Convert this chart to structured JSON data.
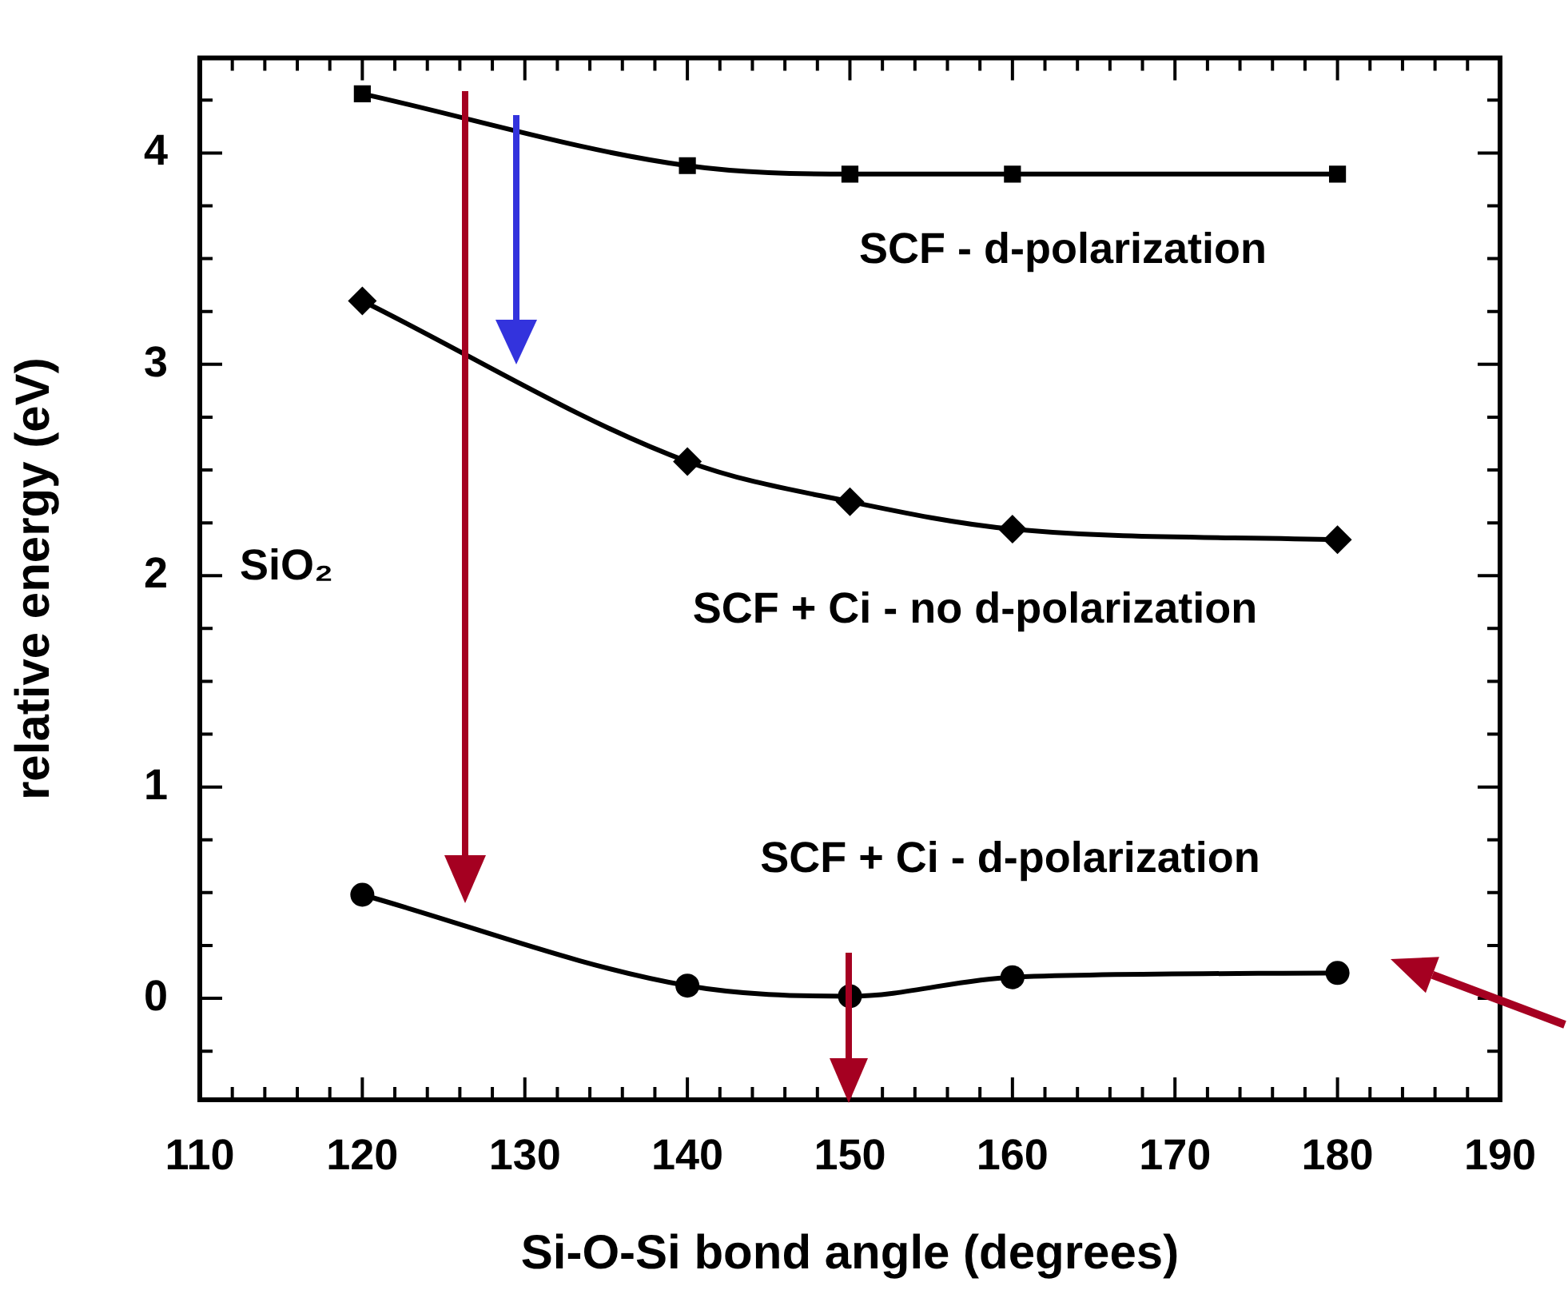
{
  "chart_data": {
    "type": "line",
    "xlabel": "Si-O-Si bond angle (degrees)",
    "ylabel": "relative energy (eV)",
    "x": [
      120,
      140,
      150,
      160,
      180
    ],
    "series": [
      {
        "name": "SCF - d-polarization",
        "color": "#000000",
        "marker": "square",
        "values": [
          4.28,
          3.94,
          3.9,
          3.9,
          3.9
        ]
      },
      {
        "name": "SCF + Ci - no d-polarization",
        "color": "#000000",
        "marker": "diamond",
        "values": [
          3.3,
          2.54,
          2.35,
          2.22,
          2.17
        ]
      },
      {
        "name": "SCF + Ci - d-polarization",
        "color": "#000000",
        "marker": "circle",
        "values": [
          0.49,
          0.06,
          0.01,
          0.1,
          0.12
        ]
      }
    ],
    "xlim": [
      110,
      190
    ],
    "xticks": [
      110,
      {
        "value": 112,
        "label": null
      },
      {
        "value": 114,
        "label": null
      },
      {
        "value": 116,
        "label": null
      },
      {
        "value": 118,
        "label": null
      },
      120,
      {
        "value": 122,
        "label": null
      },
      {
        "value": 124,
        "label": null
      },
      {
        "value": 126,
        "label": null
      },
      {
        "value": 128,
        "label": null
      },
      130,
      {
        "value": 132,
        "label": null
      },
      {
        "value": 134,
        "label": null
      },
      {
        "value": 136,
        "label": null
      },
      {
        "value": 138,
        "label": null
      },
      140,
      {
        "value": 142,
        "label": null
      },
      {
        "value": 144,
        "label": null
      },
      {
        "value": 146,
        "label": null
      },
      {
        "value": 148,
        "label": null
      },
      150,
      {
        "value": 152,
        "label": null
      },
      {
        "value": 154,
        "label": null
      },
      {
        "value": 156,
        "label": null
      },
      {
        "value": 158,
        "label": null
      },
      160,
      {
        "value": 162,
        "label": null
      },
      {
        "value": 164,
        "label": null
      },
      {
        "value": 166,
        "label": null
      },
      {
        "value": 168,
        "label": null
      },
      170,
      {
        "value": 172,
        "label": null
      },
      {
        "value": 174,
        "label": null
      },
      {
        "value": 176,
        "label": null
      },
      {
        "value": 178,
        "label": null
      },
      180,
      {
        "value": 182,
        "label": null
      },
      {
        "value": 184,
        "label": null
      },
      {
        "value": 186,
        "label": null
      },
      {
        "value": 188,
        "label": null
      },
      190
    ],
    "ylim": [
      -0.48,
      4.45
    ],
    "yticks": [
      {
        "value": -0.25,
        "label": null
      },
      0,
      {
        "value": 0.25,
        "label": null
      },
      {
        "value": 0.5,
        "label": null
      },
      {
        "value": 0.75,
        "label": null
      },
      1,
      {
        "value": 1.25,
        "label": null
      },
      {
        "value": 1.5,
        "label": null
      },
      {
        "value": 1.75,
        "label": null
      },
      2,
      {
        "value": 2.25,
        "label": null
      },
      {
        "value": 2.5,
        "label": null
      },
      {
        "value": 2.75,
        "label": null
      },
      3,
      {
        "value": 3.25,
        "label": null
      },
      {
        "value": 3.5,
        "label": null
      },
      {
        "value": 3.75,
        "label": null
      },
      4,
      {
        "value": 4.25,
        "label": null
      }
    ],
    "annotations": [
      "SiO₂"
    ],
    "legend": false,
    "line_style": "solid"
  }
}
